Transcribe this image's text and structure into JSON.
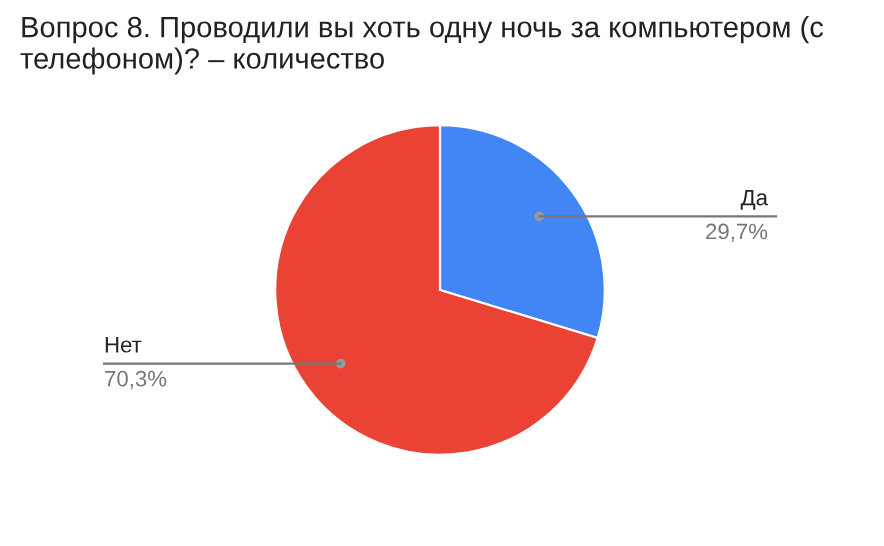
{
  "chart_data": {
    "type": "pie",
    "title": "Вопрос 8. Проводили вы хоть одну ночь за компьютером (с телефоном)? – количество",
    "categories": [
      "Да",
      "Нет"
    ],
    "values": [
      29.7,
      70.3
    ],
    "colors": [
      "#4285f4",
      "#ea4335"
    ],
    "value_labels": [
      "29,7%",
      "70,3%"
    ],
    "legend": false
  }
}
